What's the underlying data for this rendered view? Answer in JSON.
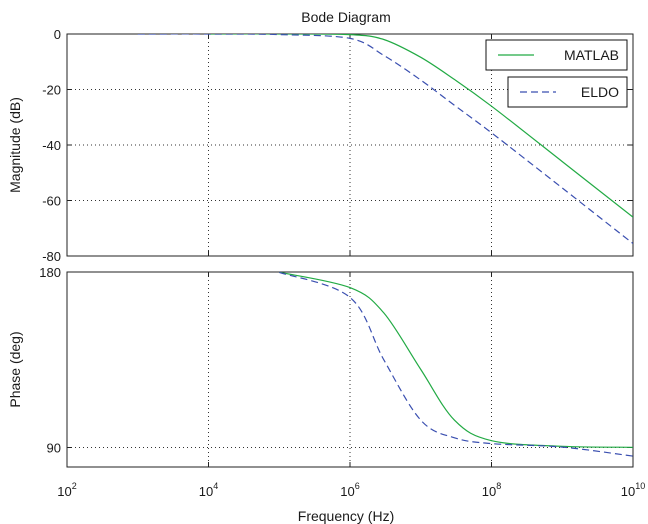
{
  "chart_data": {
    "type": "line",
    "title": "Bode Diagram",
    "xlabel": "Frequency  (Hz)",
    "x_scale": "log",
    "xlim": [
      100,
      10000000000
    ],
    "x_ticks": [
      {
        "base": "10",
        "exp": "2",
        "value": 100
      },
      {
        "base": "10",
        "exp": "4",
        "value": 10000
      },
      {
        "base": "10",
        "exp": "6",
        "value": 1000000
      },
      {
        "base": "10",
        "exp": "8",
        "value": 100000000
      },
      {
        "base": "10",
        "exp": "10",
        "value": 10000000000
      }
    ],
    "grid": true,
    "legend_position": "top-right",
    "colors": {
      "MATLAB": "#22aa44",
      "ELDO": "#3a4fb0"
    },
    "panels": [
      {
        "id": "magnitude",
        "ylabel": "Magnitude (dB)",
        "ylim": [
          -80,
          0
        ],
        "y_ticks": [
          0,
          -20,
          -40,
          -60,
          -80
        ],
        "y_tick_labels": [
          "0",
          "-20",
          "-40",
          "-60",
          "-80"
        ],
        "series": [
          {
            "name": "MATLAB",
            "style": "solid",
            "x": [
              10000,
              100000,
              1000000,
              3000000,
              10000000,
              30000000,
              100000000,
              1000000000,
              10000000000
            ],
            "y": [
              0,
              0,
              -0.2,
              -2,
              -8.4,
              -16.4,
              -26,
              -46,
              -66
            ]
          },
          {
            "name": "ELDO",
            "style": "dashed",
            "x": [
              1000,
              10000,
              100000,
              1000000,
              3000000,
              10000000,
              30000000,
              100000000,
              1000000000,
              10000000000
            ],
            "y": [
              0,
              0,
              -0.2,
              -1.6,
              -7.7,
              -16.6,
              -25.7,
              -35.6,
              -55.5,
              -75.5
            ]
          }
        ]
      },
      {
        "id": "phase",
        "ylabel": "Phase (deg)",
        "ylim": [
          80,
          180
        ],
        "y_ticks": [
          180,
          90
        ],
        "y_tick_labels": [
          "180",
          "90"
        ],
        "series": [
          {
            "name": "MATLAB",
            "style": "solid",
            "x": [
              100000,
              1000000,
              3000000,
              10000000,
              30000000,
              100000000,
              1000000000,
              10000000000
            ],
            "y": [
              179.9,
              172,
              159,
              130,
              104,
              93.5,
              90.6,
              90.1
            ]
          },
          {
            "name": "ELDO",
            "style": "dashed",
            "x": [
              100000,
              1000000,
              3000000,
              10000000,
              30000000,
              100000000,
              1000000000,
              10000000000
            ],
            "y": [
              179.8,
              167,
              135,
              104,
              95,
              92,
              90.2,
              85.6
            ]
          }
        ]
      }
    ]
  }
}
